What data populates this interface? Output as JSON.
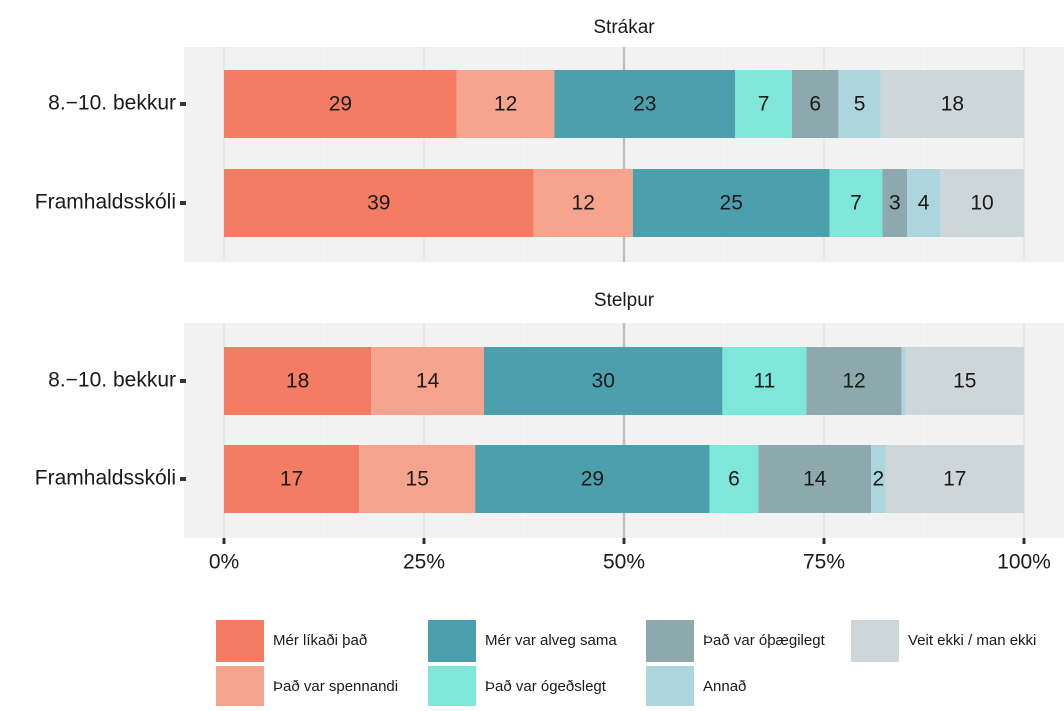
{
  "chart_data": [
    {
      "type": "stacked_bar_horizontal",
      "title": "Strákar",
      "categories": [
        "8.−10. bekkur",
        "Framhaldsskóli"
      ],
      "xlim": [
        0,
        100
      ],
      "xticks": [
        {
          "value": 0,
          "label": "0%"
        },
        {
          "value": 25,
          "label": "25%"
        },
        {
          "value": 50,
          "label": "50%"
        },
        {
          "value": 75,
          "label": "75%"
        },
        {
          "value": 100,
          "label": "100%"
        }
      ],
      "vline": 50,
      "series": [
        {
          "name": "Mér líkaði það",
          "color": "#f47c62",
          "values": [
            29.1,
            38.7
          ],
          "value_labels": [
            "29",
            "39"
          ]
        },
        {
          "name": "Það var spennandi",
          "color": "#f7a48f",
          "values": [
            12.2,
            12.4
          ],
          "value_labels": [
            "12",
            "12"
          ]
        },
        {
          "name": "Mér var alveg sama",
          "color": "#4c9fad",
          "values": [
            22.6,
            24.6
          ],
          "value_labels": [
            "23",
            "25"
          ]
        },
        {
          "name": "Það var ógeðslegt",
          "color": "#7fe6da",
          "values": [
            7.1,
            6.6
          ],
          "value_labels": [
            "7",
            "7"
          ]
        },
        {
          "name": "Það var óþægilegt",
          "color": "#8ea9ae",
          "values": [
            5.8,
            3.1
          ],
          "value_labels": [
            "6",
            "3"
          ]
        },
        {
          "name": "Annað",
          "color": "#acd5dd",
          "values": [
            5.3,
            4.1
          ],
          "value_labels": [
            "5",
            "4"
          ]
        },
        {
          "name": "Veit ekki / man ekki",
          "color": "#cdd6d8",
          "values": [
            17.9,
            10.5
          ],
          "value_labels": [
            "18",
            "10"
          ]
        }
      ]
    },
    {
      "type": "stacked_bar_horizontal",
      "title": "Stelpur",
      "categories": [
        "8.−10. bekkur",
        "Framhaldsskóli"
      ],
      "xlim": [
        0,
        100
      ],
      "xticks": [
        {
          "value": 0,
          "label": "0%"
        },
        {
          "value": 25,
          "label": "25%"
        },
        {
          "value": 50,
          "label": "50%"
        },
        {
          "value": 75,
          "label": "75%"
        },
        {
          "value": 100,
          "label": "100%"
        }
      ],
      "vline": 50,
      "series": [
        {
          "name": "Mér líkaði það",
          "color": "#f47c62",
          "values": [
            18.4,
            16.9
          ],
          "value_labels": [
            "18",
            "17"
          ]
        },
        {
          "name": "Það var spennandi",
          "color": "#f7a48f",
          "values": [
            14.1,
            14.5
          ],
          "value_labels": [
            "14",
            "15"
          ]
        },
        {
          "name": "Mér var alveg sama",
          "color": "#4c9fad",
          "values": [
            29.8,
            29.3
          ],
          "value_labels": [
            "30",
            "29"
          ]
        },
        {
          "name": "Það var ógeðslegt",
          "color": "#7fe6da",
          "values": [
            10.5,
            6.1
          ],
          "value_labels": [
            "11",
            "6"
          ]
        },
        {
          "name": "Það var óþægilegt",
          "color": "#8ea9ae",
          "values": [
            11.9,
            14.1
          ],
          "value_labels": [
            "12",
            "14"
          ]
        },
        {
          "name": "Annað",
          "color": "#acd5dd",
          "values": [
            0.5,
            1.8
          ],
          "value_labels": [
            null,
            "2"
          ]
        },
        {
          "name": "Veit ekki / man ekki",
          "color": "#cdd6d8",
          "values": [
            14.8,
            17.3
          ],
          "value_labels": [
            "15",
            "17"
          ]
        }
      ]
    }
  ]
}
